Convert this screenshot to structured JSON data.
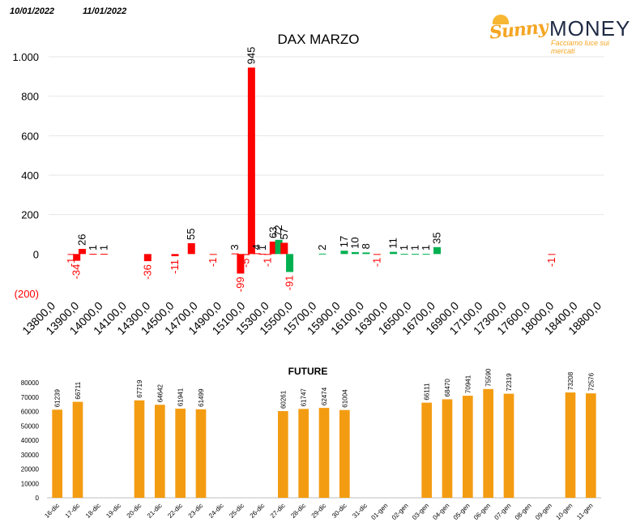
{
  "header": {
    "date1": "10/01/2022",
    "date2": "11/01/2022"
  },
  "logo": {
    "word1": "Sunny",
    "word2": "MONEY",
    "tagline": "Facciamo luce sui mercati"
  },
  "colors": {
    "positive": "#00b050",
    "negative": "#ff0000",
    "future": "#f39c12",
    "axis_red": "#ff0000"
  },
  "chart_data": [
    {
      "type": "bar",
      "title": "DAX MARZO",
      "ylim": [
        -200,
        1000
      ],
      "yticks": [
        -200,
        0,
        200,
        400,
        600,
        800,
        1000
      ],
      "ytick_labels": [
        "(200)",
        "0",
        "200",
        "400",
        "600",
        "800",
        "1.000"
      ],
      "grid": true,
      "categories": [
        "13800,0",
        "13900,0",
        "14000,0",
        "14100,0",
        "14300,0",
        "14500,0",
        "14700,0",
        "14900,0",
        "15100,0",
        "15300,0",
        "15500,0",
        "15700,0",
        "15900,0",
        "16100,0",
        "16300,0",
        "16500,0",
        "16700,0",
        "16900,0",
        "17100,0",
        "17300,0",
        "17600,0",
        "18000,0",
        "18400,0",
        "18800,0"
      ],
      "bars": [
        {
          "x": 14000,
          "value": -1,
          "color": "red"
        },
        {
          "x": 14050,
          "value": -34,
          "color": "red"
        },
        {
          "x": 14100,
          "value": 26,
          "color": "red"
        },
        {
          "x": 14200,
          "value": 1,
          "color": "red"
        },
        {
          "x": 14300,
          "value": 1,
          "color": "red"
        },
        {
          "x": 14700,
          "value": -36,
          "color": "red"
        },
        {
          "x": 14950,
          "value": -11,
          "color": "red"
        },
        {
          "x": 15100,
          "value": 55,
          "color": "red"
        },
        {
          "x": 15300,
          "value": -1,
          "color": "red"
        },
        {
          "x": 15500,
          "value": 3,
          "color": "red"
        },
        {
          "x": 15550,
          "value": -99,
          "color": "red"
        },
        {
          "x": 15600,
          "value": -5,
          "color": "red"
        },
        {
          "x": 15650,
          "value": 945,
          "color": "red"
        },
        {
          "x": 15700,
          "value": 4,
          "color": "red"
        },
        {
          "x": 15750,
          "value": 1,
          "color": "red"
        },
        {
          "x": 15800,
          "value": -1,
          "color": "red"
        },
        {
          "x": 15850,
          "value": 63,
          "color": "red"
        },
        {
          "x": 15900,
          "value": 72,
          "color": "green"
        },
        {
          "x": 15950,
          "value": 57,
          "color": "red"
        },
        {
          "x": 16000,
          "value": -91,
          "color": "green"
        },
        {
          "x": 16300,
          "value": 2,
          "color": "green"
        },
        {
          "x": 16500,
          "value": 17,
          "color": "green"
        },
        {
          "x": 16600,
          "value": 10,
          "color": "green"
        },
        {
          "x": 16700,
          "value": 8,
          "color": "green"
        },
        {
          "x": 16800,
          "value": -1,
          "color": "red"
        },
        {
          "x": 16950,
          "value": 11,
          "color": "green"
        },
        {
          "x": 17050,
          "value": 1,
          "color": "green"
        },
        {
          "x": 17150,
          "value": 1,
          "color": "green"
        },
        {
          "x": 17250,
          "value": 1,
          "color": "green"
        },
        {
          "x": 17350,
          "value": 35,
          "color": "green"
        },
        {
          "x": 18400,
          "value": -1,
          "color": "red"
        }
      ]
    },
    {
      "type": "bar",
      "title": "FUTURE",
      "ylim": [
        0,
        80000
      ],
      "yticks": [
        0,
        10000,
        20000,
        30000,
        40000,
        50000,
        60000,
        70000,
        80000
      ],
      "grid": false,
      "categories": [
        "16-dic",
        "17-dic",
        "18-dic",
        "19-dic",
        "20-dic",
        "21-dic",
        "22-dic",
        "23-dic",
        "24-dic",
        "25-dic",
        "26-dic",
        "27-dic",
        "28-dic",
        "29-dic",
        "30-dic",
        "31-dic",
        "01-gen",
        "02-gen",
        "03-gen",
        "04-gen",
        "05-gen",
        "06-gen",
        "07-gen",
        "08-gen",
        "09-gen",
        "10-gen",
        "11-gen"
      ],
      "values": [
        61239,
        66711,
        null,
        null,
        67719,
        64642,
        61941,
        61499,
        null,
        null,
        null,
        60261,
        61747,
        62474,
        61004,
        null,
        null,
        null,
        66111,
        68470,
        70941,
        75590,
        72319,
        null,
        null,
        73208,
        72576
      ]
    }
  ]
}
